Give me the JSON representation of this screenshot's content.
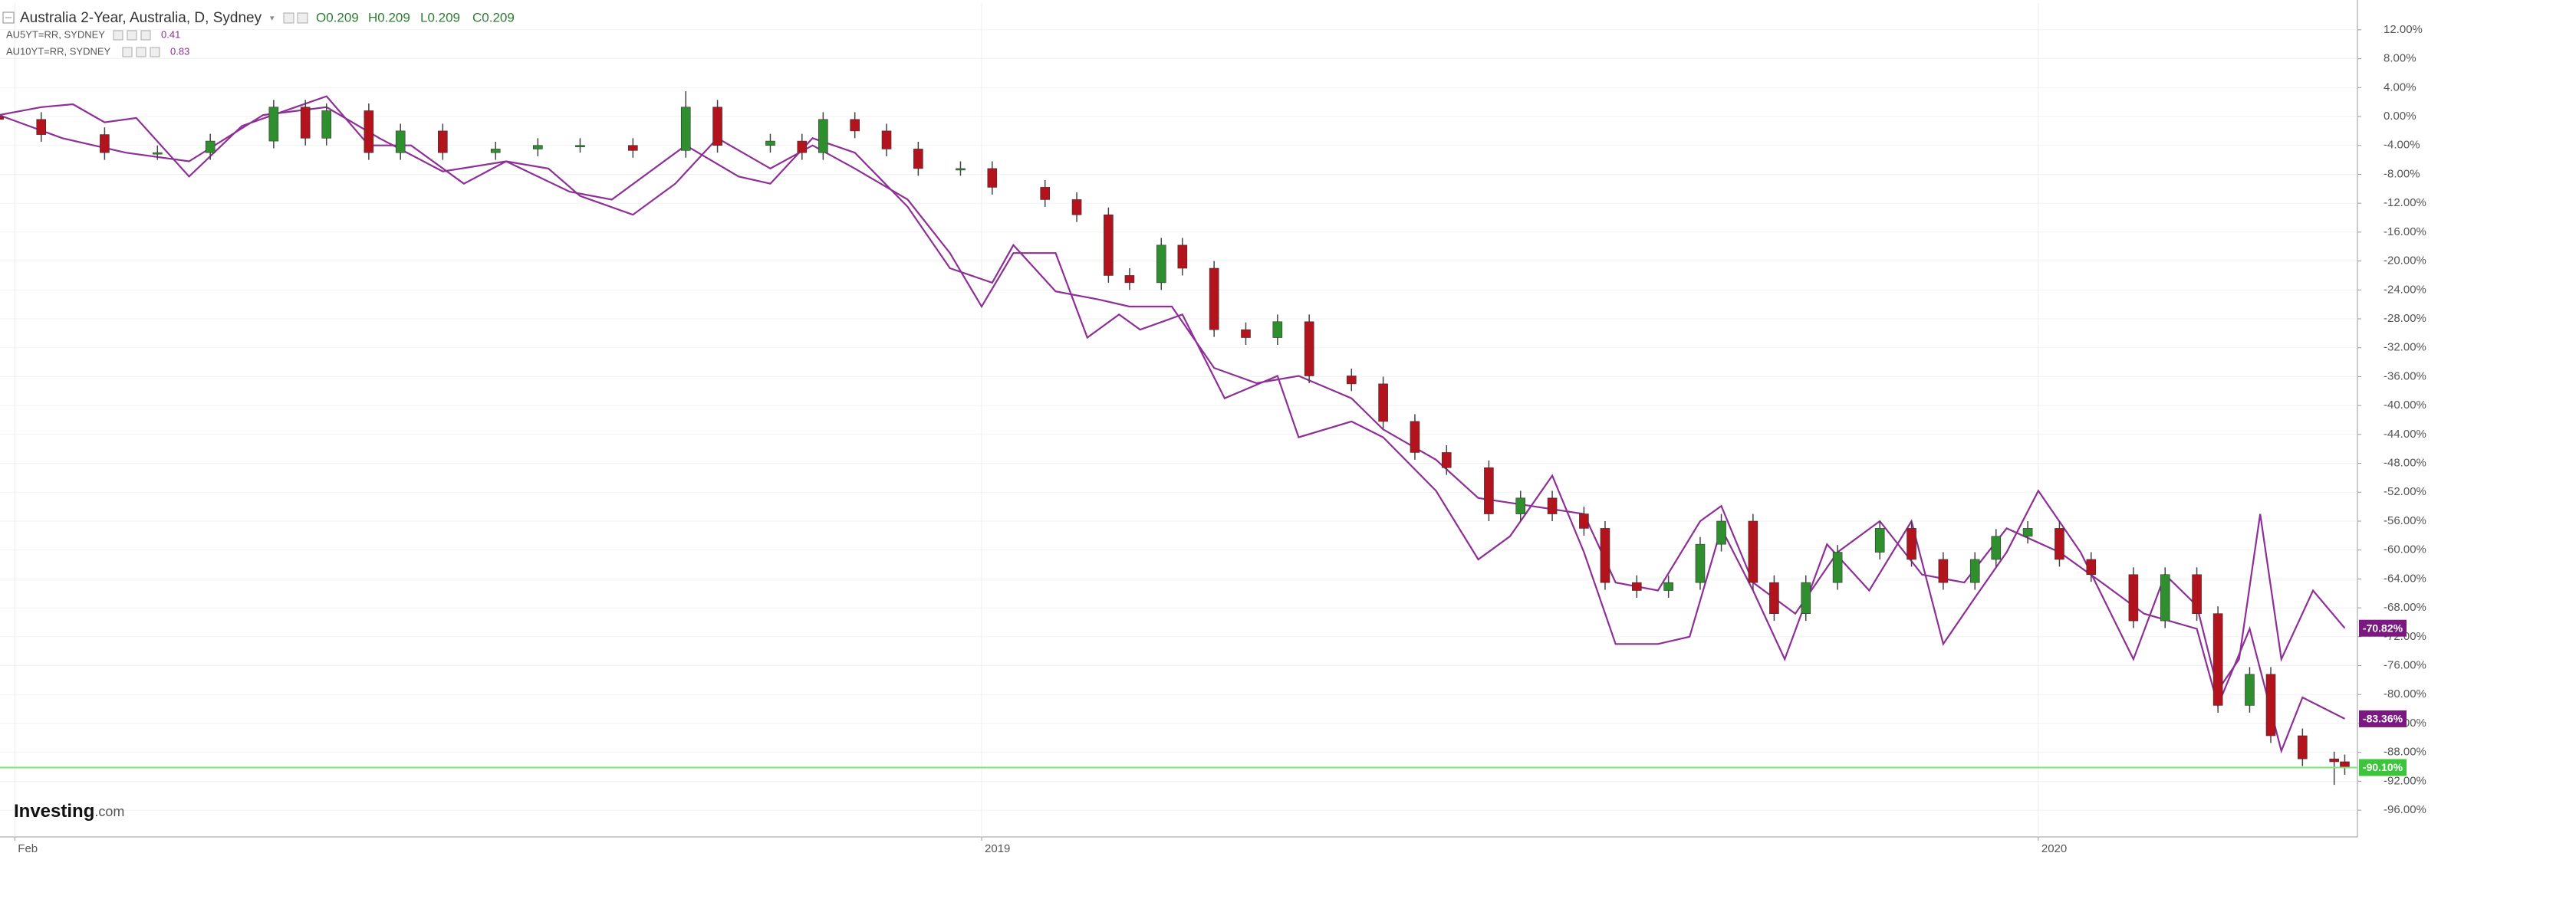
{
  "chart_data": {
    "type": "candlestick",
    "title": "Australia 2-Year, Australia, D, Sydney",
    "ohlc_labels": [
      "O0.209",
      "H0.209",
      "L0.209",
      "C0.209"
    ],
    "brand": [
      "Investing",
      ".com"
    ],
    "up_color": "#2f8f2f",
    "down_color": "#b3131d",
    "last_line_color": "#7ee37e",
    "last_label": "-90.10%",
    "x": [
      2018.07,
      2018.11,
      2018.17,
      2018.22,
      2018.27,
      2018.33,
      2018.36,
      2018.38,
      2018.42,
      2018.45,
      2018.49,
      2018.54,
      2018.58,
      2018.62,
      2018.67,
      2018.72,
      2018.75,
      2018.8,
      2018.83,
      2018.85,
      2018.88,
      2018.91,
      2018.94,
      2018.98,
      2019.01,
      2019.06,
      2019.09,
      2019.12,
      2019.14,
      2019.17,
      2019.19,
      2019.22,
      2019.25,
      2019.28,
      2019.31,
      2019.35,
      2019.38,
      2019.41,
      2019.44,
      2019.48,
      2019.51,
      2019.54,
      2019.57,
      2019.59,
      2019.62,
      2019.65,
      2019.68,
      2019.7,
      2019.73,
      2019.75,
      2019.78,
      2019.81,
      2019.85,
      2019.88,
      2019.91,
      2019.94,
      2019.96,
      2019.99,
      2020.02,
      2020.05,
      2020.09,
      2020.12,
      2020.15,
      2020.17,
      2020.2,
      2020.22,
      2020.25,
      2020.28,
      2020.29
    ],
    "open": [
      0,
      -0.4,
      -2.5,
      -5,
      -5,
      -3.4,
      1.3,
      -3,
      0.8,
      -5,
      -2,
      -5,
      -4.5,
      -4,
      -4,
      -4.7,
      1.3,
      -4,
      -3.4,
      -5,
      -0.4,
      -2,
      -4.5,
      -7.2,
      -7.2,
      -9.8,
      -11.5,
      -13.6,
      -22,
      -23,
      -17.8,
      -21,
      -29.5,
      -30.6,
      -28.4,
      -35.9,
      -37,
      -42.2,
      -46.5,
      -48.6,
      -55,
      -52.8,
      -55,
      -57,
      -64.5,
      -65.6,
      -64.5,
      -59.2,
      -56,
      -64.5,
      -68.8,
      -64.5,
      -60.3,
      -57,
      -61.3,
      -64.5,
      -61.3,
      -58.1,
      -57,
      -61.3,
      -63.4,
      -69.8,
      -63.4,
      -68.8,
      -81.5,
      -77.2,
      -85.7,
      -88.9,
      -89.3
    ],
    "high": [
      1,
      0.6,
      -1.5,
      -4,
      -2.4,
      2.3,
      2.3,
      1.8,
      1.8,
      -1,
      -1,
      -3.5,
      -3,
      -3,
      -3,
      3.5,
      2.3,
      -2.4,
      -2.4,
      0.6,
      0.6,
      -1,
      -3.5,
      -6.2,
      -6.2,
      -8.8,
      -10.5,
      -12.6,
      -21,
      -16.8,
      -16.8,
      -20,
      -28.5,
      -27.4,
      -27.4,
      -34.9,
      -36,
      -41.2,
      -45.5,
      -47.6,
      -51.8,
      -51.8,
      -54,
      -56,
      -63.5,
      -63.5,
      -58.2,
      -55,
      -55,
      -63.5,
      -63.5,
      -59.3,
      -56,
      -56,
      -60.3,
      -60.3,
      -57.1,
      -56,
      -56,
      -60.3,
      -62.4,
      -62.4,
      -62.4,
      -67.8,
      -76.2,
      -76.2,
      -84.7,
      -87.9,
      -88.3
    ],
    "low": [
      -1.4,
      -3.5,
      -6,
      -6,
      -6,
      -4.4,
      -4,
      -4,
      -6,
      -6,
      -6,
      -6,
      -5.5,
      -5,
      -5.7,
      -5.7,
      -5,
      -5,
      -6,
      -6,
      -3,
      -5.5,
      -8.2,
      -8.2,
      -10.8,
      -12.5,
      -14.6,
      -23,
      -24,
      -24,
      -22,
      -30.5,
      -31.6,
      -31.6,
      -36.9,
      -38,
      -43.2,
      -47.5,
      -49.6,
      -56,
      -56,
      -56,
      -58,
      -65.5,
      -66.6,
      -66.6,
      -65.5,
      -60.2,
      -65.5,
      -69.8,
      -69.8,
      -65.5,
      -61.3,
      -62.3,
      -65.5,
      -65.5,
      -62.3,
      -59.1,
      -62.3,
      -64.4,
      -70.8,
      -70.8,
      -69.8,
      -82.5,
      -82.5,
      -86.7,
      -89.9,
      -92.5,
      -91.1
    ],
    "close": [
      -0.4,
      -2.5,
      -5,
      -5,
      -3.4,
      1.3,
      -3,
      0.8,
      -5,
      -2,
      -5,
      -4.5,
      -4,
      -4,
      -4.7,
      1.3,
      -4,
      -3.4,
      -5,
      -0.4,
      -2,
      -4.5,
      -7.2,
      -7.2,
      -9.8,
      -11.5,
      -13.6,
      -22,
      -23,
      -17.8,
      -21,
      -29.5,
      -30.6,
      -28.4,
      -35.9,
      -37,
      -42.2,
      -46.5,
      -48.6,
      -55,
      -52.8,
      -55,
      -57,
      -64.5,
      -65.6,
      -64.5,
      -59.2,
      -56,
      -64.5,
      -68.8,
      -64.5,
      -60.3,
      -57,
      -61.3,
      -64.5,
      -61.3,
      -58.1,
      -57,
      -61.3,
      -63.4,
      -69.8,
      -63.4,
      -68.8,
      -81.5,
      -77.2,
      -85.7,
      -88.9,
      -89.3,
      -90.1
    ],
    "series": [
      {
        "name": "AU5YT=RR, SYDNEY",
        "legend_value": "0.41",
        "type": "line",
        "color": "#8e2f97",
        "last_label": "-83.36%",
        "x": [
          2018.07,
          2018.13,
          2018.19,
          2018.25,
          2018.32,
          2018.38,
          2018.43,
          2018.49,
          2018.55,
          2018.61,
          2018.65,
          2018.72,
          2018.77,
          2018.8,
          2018.84,
          2018.88,
          2018.93,
          2018.97,
          2019.01,
          2019.03,
          2019.07,
          2019.11,
          2019.14,
          2019.18,
          2019.22,
          2019.26,
          2019.3,
          2019.35,
          2019.38,
          2019.43,
          2019.47,
          2019.52,
          2019.57,
          2019.6,
          2019.64,
          2019.68,
          2019.7,
          2019.73,
          2019.77,
          2019.81,
          2019.85,
          2019.89,
          2019.93,
          2019.97,
          2020.02,
          2020.06,
          2020.1,
          2020.15,
          2020.17,
          2020.2,
          2020.23,
          2020.25,
          2020.29
        ],
        "values": [
          0.2,
          -3,
          -5,
          -6.2,
          0.2,
          1.3,
          -3,
          -7.6,
          -6.2,
          -10.4,
          -11.5,
          -4,
          -8.3,
          -9.3,
          -3,
          -5,
          -12.5,
          -21,
          -23,
          -17.8,
          -24.2,
          -25.3,
          -26.3,
          -26.3,
          -34.8,
          -36.9,
          -35.9,
          -39,
          -43.3,
          -47.5,
          -52.8,
          -53.9,
          -55,
          -64.5,
          -65.6,
          -56,
          -53.9,
          -64.5,
          -68.8,
          -60.3,
          -56,
          -63.4,
          -64.5,
          -57,
          -60.3,
          -64.5,
          -68.8,
          -70.9,
          -81.5,
          -70.9,
          -87.8,
          -80.4,
          -83.36
        ]
      },
      {
        "name": "AU10YT=RR, SYDNEY",
        "legend_value": "0.83",
        "type": "line",
        "color": "#8e2f97",
        "last_label": "-70.82%",
        "x": [
          2018.07,
          2018.11,
          2018.14,
          2018.17,
          2018.2,
          2018.25,
          2018.3,
          2018.38,
          2018.42,
          2018.46,
          2018.51,
          2018.55,
          2018.59,
          2018.62,
          2018.67,
          2018.71,
          2018.75,
          2018.8,
          2018.84,
          2018.88,
          2018.93,
          2018.97,
          2019.0,
          2019.03,
          2019.07,
          2019.1,
          2019.13,
          2019.15,
          2019.19,
          2019.23,
          2019.28,
          2019.3,
          2019.35,
          2019.38,
          2019.43,
          2019.47,
          2019.5,
          2019.54,
          2019.57,
          2019.6,
          2019.64,
          2019.67,
          2019.7,
          2019.73,
          2019.76,
          2019.8,
          2019.84,
          2019.88,
          2019.91,
          2019.94,
          2019.97,
          2020.0,
          2020.04,
          2020.09,
          2020.12,
          2020.15,
          2020.17,
          2020.19,
          2020.21,
          2020.23,
          2020.26,
          2020.29
        ],
        "values": [
          0.2,
          1.3,
          1.7,
          -0.8,
          -0.2,
          -8.3,
          -1.3,
          2.8,
          -4,
          -4,
          -9.3,
          -6.2,
          -7.2,
          -11,
          -13.6,
          -9.3,
          -3,
          -7.2,
          -4,
          -7.2,
          -11.5,
          -18.9,
          -26.3,
          -18.9,
          -18.9,
          -30.6,
          -27.4,
          -29.5,
          -27.4,
          -39,
          -35.9,
          -44.4,
          -42.2,
          -44.4,
          -51.8,
          -61.3,
          -58.1,
          -49.7,
          -60.3,
          -73,
          -73,
          -72,
          -57,
          -65.6,
          -75.1,
          -59.2,
          -65.6,
          -56,
          -73,
          -66.6,
          -60.3,
          -51.8,
          -60.3,
          -75.1,
          -63.4,
          -67.7,
          -79.4,
          -75.1,
          -55,
          -75.1,
          -65.6,
          -70.82
        ]
      }
    ],
    "xlim": [
      2018.071,
      2020.302
    ],
    "xticks": [
      {
        "value": 2018.085,
        "label": "Feb"
      },
      2019,
      2020
    ],
    "ylim": [
      -99.7,
      15.7
    ],
    "yticks": [
      {
        "value": 12,
        "label": "12.00%"
      },
      {
        "value": 8,
        "label": "8.00%"
      },
      {
        "value": 4,
        "label": "4.00%"
      },
      {
        "value": 0,
        "label": "0.00%"
      },
      {
        "value": -4,
        "label": "-4.00%"
      },
      {
        "value": -8,
        "label": "-8.00%"
      },
      {
        "value": -12,
        "label": "-12.00%"
      },
      {
        "value": -16,
        "label": "-16.00%"
      },
      {
        "value": -20,
        "label": "-20.00%"
      },
      {
        "value": -24,
        "label": "-24.00%"
      },
      {
        "value": -28,
        "label": "-28.00%"
      },
      {
        "value": -32,
        "label": "-32.00%"
      },
      {
        "value": -36,
        "label": "-36.00%"
      },
      {
        "value": -40,
        "label": "-40.00%"
      },
      {
        "value": -44,
        "label": "-44.00%"
      },
      {
        "value": -48,
        "label": "-48.00%"
      },
      {
        "value": -52,
        "label": "-52.00%"
      },
      {
        "value": -56,
        "label": "-56.00%"
      },
      {
        "value": -60,
        "label": "-60.00%"
      },
      {
        "value": -64,
        "label": "-64.00%"
      },
      {
        "value": -68,
        "label": "-68.00%"
      },
      {
        "value": -72,
        "label": "-72.00%"
      },
      {
        "value": -76,
        "label": "-76.00%"
      },
      {
        "value": -80,
        "label": "-80.00%"
      },
      {
        "value": -84,
        "label": "-84.00%"
      },
      {
        "value": -88,
        "label": "-88.00%"
      },
      {
        "value": -92,
        "label": "-92.00%"
      },
      {
        "value": -96,
        "label": "-96.00%"
      }
    ],
    "grid": true
  }
}
